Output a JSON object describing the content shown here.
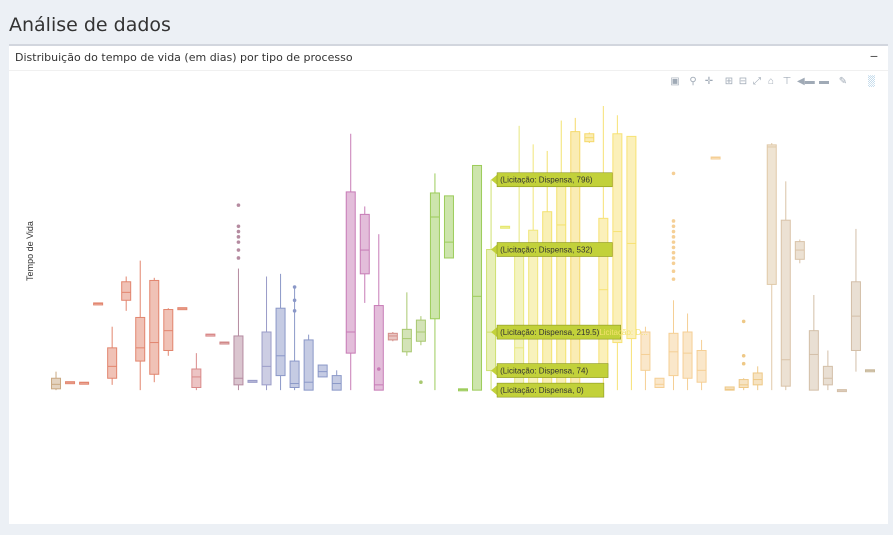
{
  "page": {
    "title": "Análise de dados"
  },
  "panel": {
    "title": "Distribuição do tempo de vida (em dias) por tipo de processo",
    "collapse_label": "−"
  },
  "modebar": {
    "icons": [
      "camera-icon",
      "zoom-icon",
      "pan-icon",
      "zoom-in-icon",
      "zoom-out-icon",
      "autoscale-icon",
      "reset-axes-icon",
      "spike-lines-icon",
      "hover-closest-icon",
      "hover-compare-icon",
      "logo-icon",
      "plotly-logo-icon"
    ]
  },
  "chart_data": {
    "type": "box",
    "title": "",
    "xlabel": "",
    "ylabel": "Tempo de Vida",
    "ylim": [
      -60,
      1075
    ],
    "grid": false,
    "legend": "none",
    "series": [
      {
        "color": "#c9a882",
        "q1": 5,
        "median": 22,
        "q3": 45,
        "whisker_low": 0,
        "whisker_high": 70,
        "outliers": []
      },
      {
        "color": "#e2856e",
        "q1": 30,
        "median": 30,
        "q3": 32,
        "whisker_low": 30,
        "whisker_high": 32,
        "outliers": []
      },
      {
        "color": "#e2856e",
        "q1": 28,
        "median": 28,
        "q3": 30,
        "whisker_low": 28,
        "whisker_high": 30,
        "outliers": []
      },
      {
        "color": "#e2856e",
        "q1": 328,
        "median": 328,
        "q3": 330,
        "whisker_low": 328,
        "whisker_high": 330,
        "outliers": []
      },
      {
        "color": "#e2856e",
        "q1": 45,
        "median": 90,
        "q3": 160,
        "whisker_low": 20,
        "whisker_high": 240,
        "outliers": []
      },
      {
        "color": "#e2856e",
        "q1": 340,
        "median": 370,
        "q3": 410,
        "whisker_low": 300,
        "whisker_high": 430,
        "outliers": []
      },
      {
        "color": "#e2856e",
        "q1": 110,
        "median": 160,
        "q3": 275,
        "whisker_low": 0,
        "whisker_high": 490,
        "outliers": []
      },
      {
        "color": "#e2856e",
        "q1": 60,
        "median": 180,
        "q3": 415,
        "whisker_low": 30,
        "whisker_high": 425,
        "outliers": []
      },
      {
        "color": "#e2856e",
        "q1": 150,
        "median": 225,
        "q3": 305,
        "whisker_low": 130,
        "whisker_high": 310,
        "outliers": []
      },
      {
        "color": "#e2856e",
        "q1": 310,
        "median": 310,
        "q3": 312,
        "whisker_low": 310,
        "whisker_high": 312,
        "outliers": []
      },
      {
        "color": "#d98a8a",
        "q1": 10,
        "median": 50,
        "q3": 80,
        "whisker_low": 0,
        "whisker_high": 140,
        "outliers": []
      },
      {
        "color": "#d98a8a",
        "q1": 210,
        "median": 210,
        "q3": 212,
        "whisker_low": 210,
        "whisker_high": 212,
        "outliers": []
      },
      {
        "color": "#d08888",
        "q1": 180,
        "median": 180,
        "q3": 182,
        "whisker_low": 180,
        "whisker_high": 182,
        "outliers": []
      },
      {
        "color": "#b58ba0",
        "q1": 20,
        "median": 45,
        "q3": 205,
        "whisker_low": 0,
        "whisker_high": 460,
        "outliers": [
          500,
          530,
          560,
          580,
          600,
          620,
          700
        ]
      },
      {
        "color": "#9a9cc8",
        "q1": 35,
        "median": 35,
        "q3": 37,
        "whisker_low": 35,
        "whisker_high": 37,
        "outliers": []
      },
      {
        "color": "#9a9cc8",
        "q1": 20,
        "median": 90,
        "q3": 220,
        "whisker_low": 0,
        "whisker_high": 430,
        "outliers": []
      },
      {
        "color": "#8b98c8",
        "q1": 55,
        "median": 130,
        "q3": 310,
        "whisker_low": 0,
        "whisker_high": 440,
        "outliers": []
      },
      {
        "color": "#8b98c8",
        "q1": 10,
        "median": 25,
        "q3": 110,
        "whisker_low": 0,
        "whisker_high": 390,
        "outliers": [
          300,
          340,
          390
        ]
      },
      {
        "color": "#8b98c8",
        "q1": 0,
        "median": 30,
        "q3": 190,
        "whisker_low": 0,
        "whisker_high": 210,
        "outliers": []
      },
      {
        "color": "#8b98c8",
        "q1": 50,
        "median": 70,
        "q3": 95,
        "whisker_low": 50,
        "whisker_high": 95,
        "outliers": []
      },
      {
        "color": "#8b98c8",
        "q1": 0,
        "median": 25,
        "q3": 55,
        "whisker_low": 0,
        "whisker_high": 75,
        "outliers": []
      },
      {
        "color": "#c77bb6",
        "q1": 140,
        "median": 220,
        "q3": 750,
        "whisker_low": 0,
        "whisker_high": 970,
        "outliers": []
      },
      {
        "color": "#c77bb6",
        "q1": 440,
        "median": 530,
        "q3": 665,
        "whisker_low": 330,
        "whisker_high": 695,
        "outliers": []
      },
      {
        "color": "#c77bb6",
        "q1": 0,
        "median": 20,
        "q3": 320,
        "whisker_low": 0,
        "whisker_high": 590,
        "outliers": [
          80
        ]
      },
      {
        "color": "#d48e88",
        "q1": 190,
        "median": 205,
        "q3": 215,
        "whisker_low": 185,
        "whisker_high": 220,
        "outliers": []
      },
      {
        "color": "#a8c870",
        "q1": 145,
        "median": 195,
        "q3": 230,
        "whisker_low": 130,
        "whisker_high": 370,
        "outliers": []
      },
      {
        "color": "#a8c870",
        "q1": 185,
        "median": 220,
        "q3": 265,
        "whisker_low": 170,
        "whisker_high": 280,
        "outliers": [
          30
        ]
      },
      {
        "color": "#9ccc5a",
        "q1": 270,
        "median": 655,
        "q3": 746,
        "whisker_low": 0,
        "whisker_high": 820,
        "outliers": []
      },
      {
        "color": "#9ccc5a",
        "q1": 500,
        "median": 560,
        "q3": 735,
        "whisker_low": 500,
        "whisker_high": 735,
        "outliers": []
      },
      {
        "color": "#9ccc5a",
        "q1": 0,
        "median": 2,
        "q3": 5,
        "whisker_low": 0,
        "whisker_high": 5,
        "outliers": []
      },
      {
        "color": "#9ccc5a",
        "q1": 0,
        "median": 355,
        "q3": 850,
        "whisker_low": 0,
        "whisker_high": 851,
        "outliers": []
      },
      {
        "color": "#cfe070",
        "q1": 74,
        "median": 219.5,
        "q3": 532,
        "whisker_low": 0,
        "whisker_high": 796,
        "outliers": []
      },
      {
        "color": "#e6e870",
        "q1": 618,
        "median": 618,
        "q3": 620,
        "whisker_low": 618,
        "whisker_high": 620,
        "outliers": []
      },
      {
        "color": "#e8e880",
        "q1": 0,
        "median": 160,
        "q3": 555,
        "whisker_low": 0,
        "whisker_high": 1000,
        "outliers": []
      },
      {
        "color": "#f1e67a",
        "q1": 0,
        "median": 200,
        "q3": 605,
        "whisker_low": 0,
        "whisker_high": 930,
        "outliers": []
      },
      {
        "color": "#f3e26e",
        "q1": 10,
        "median": 90,
        "q3": 675,
        "whisker_low": 0,
        "whisker_high": 905,
        "outliers": []
      },
      {
        "color": "#f3e26e",
        "q1": 0,
        "median": 625,
        "q3": 818,
        "whisker_low": 0,
        "whisker_high": 1020,
        "outliers": []
      },
      {
        "color": "#f5d96a",
        "q1": 1,
        "median": 195,
        "q3": 978,
        "whisker_low": 0,
        "whisker_high": 1030,
        "outliers": []
      },
      {
        "color": "#f5d96a",
        "q1": 940,
        "median": 955,
        "q3": 970,
        "whisker_low": 935,
        "whisker_high": 975,
        "outliers": []
      },
      {
        "color": "#f7e275",
        "q1": 95,
        "median": 380,
        "q3": 650,
        "whisker_low": 0,
        "whisker_high": 1075,
        "outliers": []
      },
      {
        "color": "#f7e275",
        "q1": 180,
        "median": 600,
        "q3": 970,
        "whisker_low": 0,
        "whisker_high": 1040,
        "outliers": []
      },
      {
        "color": "#f7e275",
        "q1": 195,
        "median": 555,
        "q3": 960,
        "whisker_low": 0,
        "whisker_high": 960,
        "outliers": []
      },
      {
        "color": "#f5cf95",
        "q1": 75,
        "median": 135,
        "q3": 220,
        "whisker_low": 0,
        "whisker_high": 240,
        "outliers": []
      },
      {
        "color": "#f5cf95",
        "q1": 10,
        "median": 22,
        "q3": 45,
        "whisker_low": 10,
        "whisker_high": 45,
        "outliers": []
      },
      {
        "color": "#f5cf95",
        "q1": 55,
        "median": 145,
        "q3": 215,
        "whisker_low": 0,
        "whisker_high": 340,
        "outliers": [
          420,
          450,
          480,
          500,
          520,
          540,
          560,
          580,
          600,
          620,
          640,
          820
        ]
      },
      {
        "color": "#f5cf95",
        "q1": 45,
        "median": 140,
        "q3": 220,
        "whisker_low": 0,
        "whisker_high": 290,
        "outliers": []
      },
      {
        "color": "#f5cf95",
        "q1": 30,
        "median": 75,
        "q3": 150,
        "whisker_low": 0,
        "whisker_high": 190,
        "outliers": []
      },
      {
        "color": "#f5cf95",
        "q1": 880,
        "median": 880,
        "q3": 882,
        "whisker_low": 880,
        "whisker_high": 882,
        "outliers": []
      },
      {
        "color": "#eec886",
        "q1": 0,
        "median": 3,
        "q3": 12,
        "whisker_low": 0,
        "whisker_high": 12,
        "outliers": []
      },
      {
        "color": "#eec886",
        "q1": 10,
        "median": 20,
        "q3": 40,
        "whisker_low": 0,
        "whisker_high": 45,
        "outliers": [
          100,
          130,
          260
        ]
      },
      {
        "color": "#eec886",
        "q1": 20,
        "median": 40,
        "q3": 65,
        "whisker_low": 0,
        "whisker_high": 90,
        "outliers": []
      },
      {
        "color": "#e0c9a8",
        "q1": 400,
        "median": 920,
        "q3": 928,
        "whisker_low": 0,
        "whisker_high": 935,
        "outliers": []
      },
      {
        "color": "#d9c3a8",
        "q1": 15,
        "median": 115,
        "q3": 643,
        "whisker_low": 0,
        "whisker_high": 790,
        "outliers": []
      },
      {
        "color": "#d9c3a8",
        "q1": 495,
        "median": 530,
        "q3": 562,
        "whisker_low": 480,
        "whisker_high": 570,
        "outliers": []
      },
      {
        "color": "#d3bfa8",
        "q1": 0,
        "median": 135,
        "q3": 225,
        "whisker_low": 0,
        "whisker_high": 360,
        "outliers": []
      },
      {
        "color": "#d3bfa8",
        "q1": 20,
        "median": 45,
        "q3": 90,
        "whisker_low": 0,
        "whisker_high": 150,
        "outliers": []
      },
      {
        "color": "#d3bfa8",
        "q1": 0,
        "median": 0,
        "q3": 2,
        "whisker_low": 0,
        "whisker_high": 2,
        "outliers": []
      },
      {
        "color": "#d3bfa8",
        "q1": 150,
        "median": 280,
        "q3": 410,
        "whisker_low": 70,
        "whisker_high": 610,
        "outliers": []
      },
      {
        "color": "#c8b89a",
        "q1": 75,
        "median": 75,
        "q3": 77,
        "whisker_low": 75,
        "whisker_high": 77,
        "outliers": []
      }
    ],
    "hover": {
      "series_index": 31,
      "labels": [
        "(Licitação: Dispensa, 796)",
        "(Licitação: Dispensa, 532)",
        "(Licitação: Dispensa, 219.5)",
        "(Licitação: Dispensa, 74)",
        "(Licitação: Dispensa, 0)"
      ],
      "values": [
        796,
        532,
        219.5,
        74,
        0
      ],
      "side_label": "Licitação: D..."
    }
  }
}
